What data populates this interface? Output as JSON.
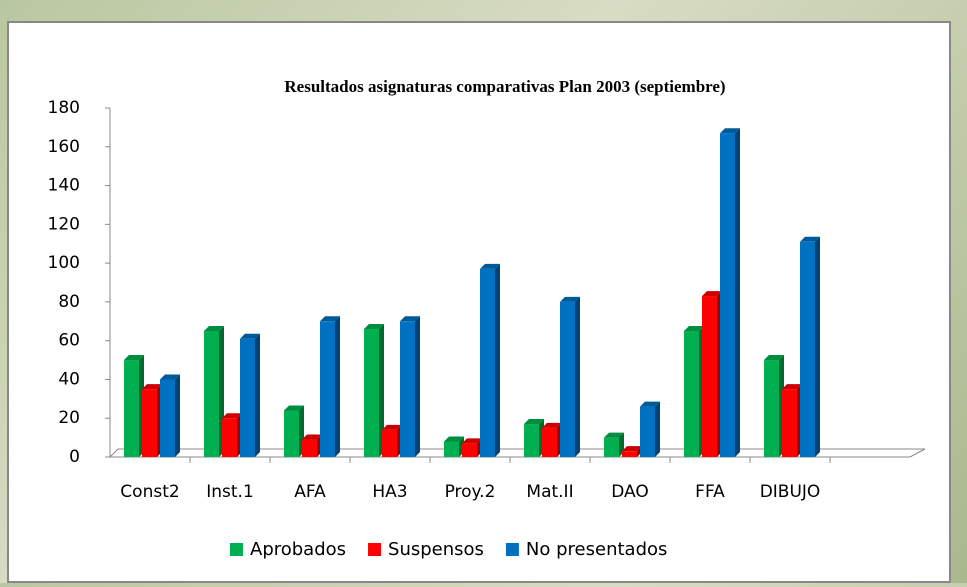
{
  "chart_data": {
    "type": "bar3d",
    "title": "Resultados asignaturas comparativas Plan 2003 (septiembre)",
    "categories": [
      "Const2",
      "Inst.1",
      "AFA",
      "HA3",
      "Proy.2",
      "Mat.II",
      "DAO",
      "FFA",
      "DIBUJO",
      null
    ],
    "series": [
      {
        "name": "Aprobados",
        "color": "#00b050",
        "values": [
          50,
          65,
          24,
          66,
          8,
          17,
          10,
          65,
          50,
          null
        ]
      },
      {
        "name": "Suspensos",
        "color": "#ff0000",
        "values": [
          35,
          20,
          9,
          14,
          7,
          15,
          3,
          83,
          35,
          null
        ]
      },
      {
        "name": "No presentados",
        "color": "#0070c0",
        "values": [
          40,
          61,
          70,
          70,
          97,
          80,
          26,
          167,
          111,
          null
        ]
      }
    ],
    "ylim": [
      0,
      180
    ],
    "yticks": [
      0,
      20,
      40,
      60,
      80,
      100,
      120,
      140,
      160,
      180
    ],
    "grid": false,
    "legend": "bottom"
  }
}
